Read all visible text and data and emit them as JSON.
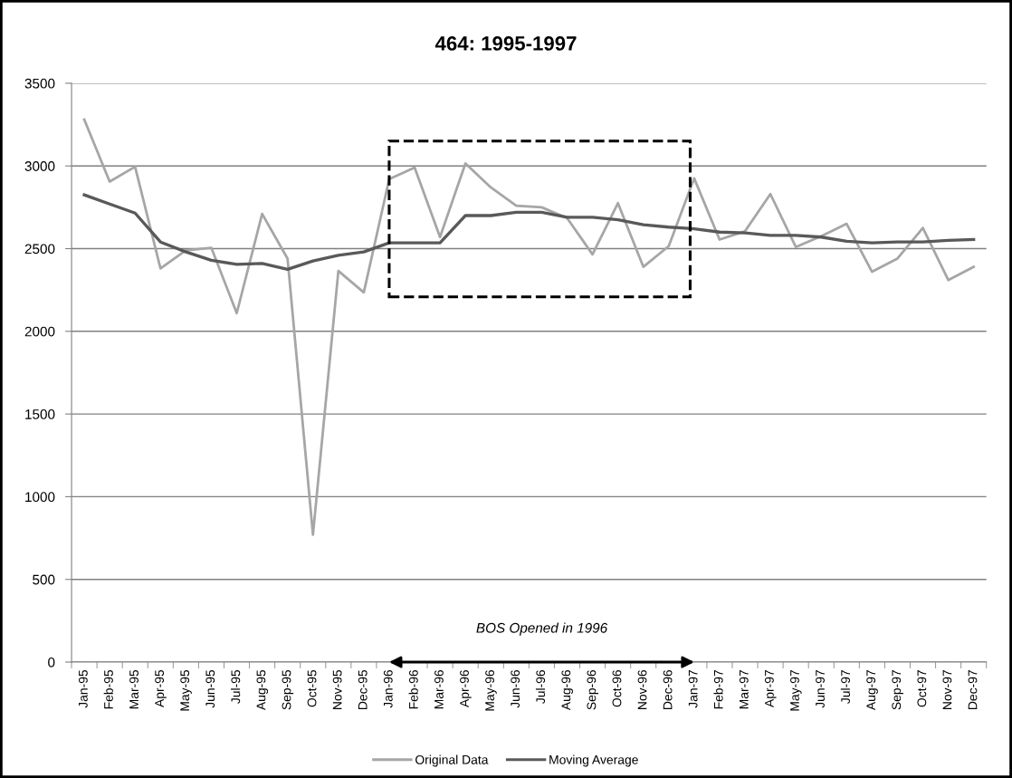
{
  "chart_data": {
    "type": "line",
    "title": "464: 1995-1997",
    "categories": [
      "Jan-95",
      "Feb-95",
      "Mar-95",
      "Apr-95",
      "May-95",
      "Jun-95",
      "Jul-95",
      "Aug-95",
      "Sep-95",
      "Oct-95",
      "Nov-95",
      "Dec-95",
      "Jan-96",
      "Feb-96",
      "Mar-96",
      "Apr-96",
      "May-96",
      "Jun-96",
      "Jul-96",
      "Aug-96",
      "Sep-96",
      "Oct-96",
      "Nov-96",
      "Dec-96",
      "Jan-97",
      "Feb-97",
      "Mar-97",
      "Apr-97",
      "May-97",
      "Jun-97",
      "Jul-97",
      "Aug-97",
      "Sep-97",
      "Oct-97",
      "Nov-97",
      "Dec-97"
    ],
    "series": [
      {
        "name": "Original Data",
        "color": "#a6a6a6",
        "values": [
          3280,
          2905,
          2995,
          2380,
          2490,
          2505,
          2110,
          2710,
          2440,
          770,
          2365,
          2235,
          2920,
          2990,
          2570,
          3015,
          2870,
          2760,
          2750,
          2685,
          2465,
          2775,
          2390,
          2515,
          2925,
          2555,
          2605,
          2830,
          2510,
          2575,
          2650,
          2360,
          2440,
          2625,
          2310,
          2390
        ]
      },
      {
        "name": "Moving Average",
        "color": "#595959",
        "values": [
          2825,
          2770,
          2715,
          2540,
          2480,
          2430,
          2405,
          2410,
          2375,
          2425,
          2460,
          2480,
          2535,
          2535,
          2535,
          2700,
          2700,
          2720,
          2720,
          2690,
          2690,
          2675,
          2645,
          2630,
          2620,
          2600,
          2595,
          2580,
          2580,
          2570,
          2545,
          2535,
          2540,
          2540,
          2550,
          2555
        ]
      }
    ],
    "ylim": [
      0,
      3500
    ],
    "yticks": [
      0,
      500,
      1000,
      1500,
      2000,
      2500,
      3000,
      3500
    ],
    "grid": "y",
    "legend": "bottom",
    "annotations": [
      "BOS Opened in 1996"
    ]
  }
}
